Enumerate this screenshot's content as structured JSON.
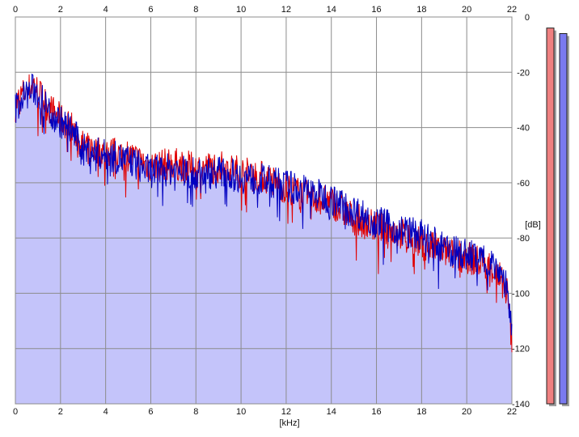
{
  "chart_data": {
    "type": "area",
    "xlabel": "[kHz]",
    "ylabel": "[dB]",
    "xlim": [
      0,
      22
    ],
    "ylim": [
      -140,
      0
    ],
    "x_ticks": [
      "0",
      "2",
      "4",
      "6",
      "8",
      "10",
      "12",
      "14",
      "16",
      "18",
      "20",
      "22"
    ],
    "y_ticks": [
      "0",
      "-20",
      "-40",
      "-60",
      "-80",
      "-100",
      "-120",
      "-140"
    ],
    "grid": true,
    "series": [
      {
        "color": "#e00000",
        "x": [
          0,
          0.3,
          0.5,
          0.8,
          1,
          1.5,
          2,
          2.5,
          3,
          3.5,
          4,
          5,
          6,
          7,
          8,
          9,
          10,
          11,
          12,
          13,
          14,
          15,
          16,
          17,
          18,
          19,
          20,
          21,
          21.5,
          21.8,
          22
        ],
        "values": [
          -32,
          -28,
          -27,
          -24,
          -27,
          -33,
          -37,
          -40,
          -47,
          -48,
          -49,
          -50,
          -54,
          -53,
          -55,
          -54,
          -56,
          -58,
          -62,
          -65,
          -67,
          -73,
          -76,
          -78,
          -82,
          -85,
          -87,
          -90,
          -94,
          -100,
          -118
        ]
      },
      {
        "color": "#0000c0",
        "x": [
          0,
          0.3,
          0.5,
          0.8,
          1,
          1.5,
          2,
          2.5,
          3,
          3.5,
          4,
          5,
          6,
          7,
          8,
          9,
          10,
          11,
          12,
          13,
          14,
          15,
          16,
          17,
          18,
          19,
          20,
          21,
          21.5,
          21.8,
          22
        ],
        "values": [
          -33,
          -29,
          -28,
          -26,
          -28,
          -34,
          -38,
          -41,
          -48,
          -49,
          -50,
          -52,
          -56,
          -55,
          -57,
          -56,
          -58,
          -59,
          -61,
          -63,
          -66,
          -70,
          -74,
          -77,
          -79,
          -84,
          -86,
          -88,
          -92,
          -98,
          -115
        ]
      }
    ],
    "level_meters": [
      {
        "color": "#ef8080",
        "level": -4
      },
      {
        "color": "#7a7af0",
        "level": -6
      }
    ],
    "area_fill": "#c4c4fa"
  }
}
